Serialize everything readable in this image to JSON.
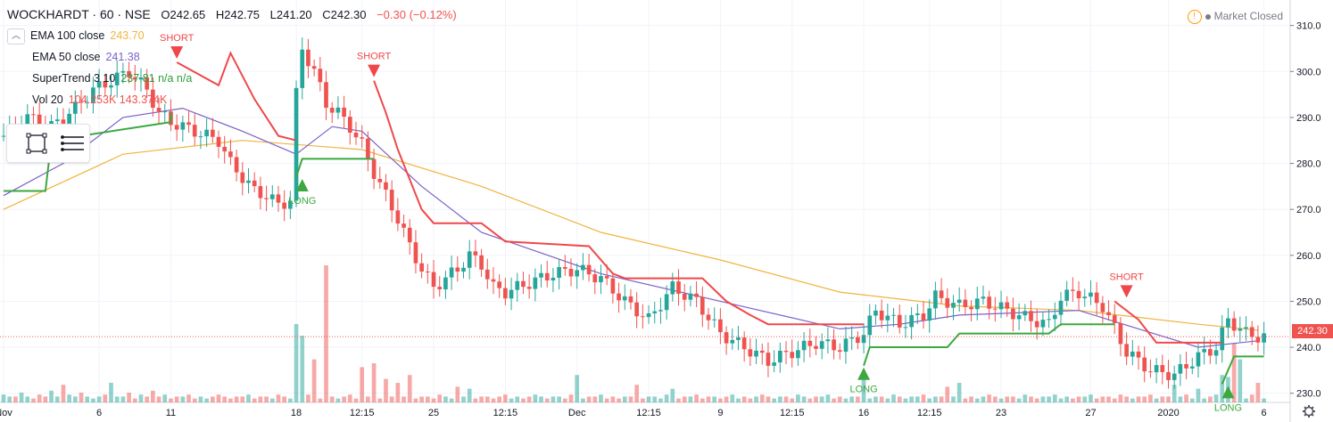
{
  "header": {
    "symbol": "WOCKHARDT · 60 · NSE",
    "open": "O242.65",
    "high": "H242.75",
    "low": "L241.20",
    "close": "C242.30",
    "change": "−0.30 (−0.12%)"
  },
  "status": {
    "market": "Market Closed",
    "warning_icon": "!"
  },
  "legend": [
    {
      "name": "EMA 100 close",
      "value": "243.70",
      "color": "#f0b43c"
    },
    {
      "name": "EMA 50 close",
      "value": "241.38",
      "color": "#7b61c9"
    },
    {
      "name": "SuperTrend 3 10",
      "value": "237.81  n/a  n/a",
      "color": "#2e9e3a"
    },
    {
      "name": "Vol 20",
      "value": "104.253K  143.374K",
      "color": "#ef5350"
    }
  ],
  "price_label": "242.30",
  "icons": {
    "collapse": "chevron-up-icon",
    "rect": "rectangle-tool-icon",
    "menu": "hamburger-menu-icon",
    "settings": "gear-icon"
  },
  "chart_data": {
    "type": "candlestick",
    "title": "WOCKHARDT · 60 · NSE",
    "y_ticks": [
      230,
      240,
      250,
      260,
      270,
      280,
      290,
      300,
      310
    ],
    "ylim": [
      228,
      314
    ],
    "x_ticks": [
      {
        "label": "Nov",
        "x": 0
      },
      {
        "label": "6",
        "x": 16
      },
      {
        "label": "11",
        "x": 28
      },
      {
        "label": "18",
        "x": 49
      },
      {
        "label": "12:15",
        "x": 60
      },
      {
        "label": "25",
        "x": 72
      },
      {
        "label": "12:15",
        "x": 84
      },
      {
        "label": "Dec",
        "x": 96
      },
      {
        "label": "12:15",
        "x": 108
      },
      {
        "label": "9",
        "x": 120
      },
      {
        "label": "12:15",
        "x": 132
      },
      {
        "label": "16",
        "x": 144
      },
      {
        "label": "12:15",
        "x": 155
      },
      {
        "label": "23",
        "x": 167
      },
      {
        "label": "27",
        "x": 182
      },
      {
        "label": "2020",
        "x": 195
      },
      {
        "label": "6",
        "x": 211
      }
    ],
    "x_range": [
      0,
      213
    ],
    "close_anchors": [
      [
        0,
        286
      ],
      [
        4,
        290
      ],
      [
        8,
        288
      ],
      [
        12,
        292
      ],
      [
        15,
        296
      ],
      [
        18,
        298
      ],
      [
        21,
        300
      ],
      [
        24,
        296
      ],
      [
        26,
        291
      ],
      [
        28,
        289
      ],
      [
        32,
        287
      ],
      [
        36,
        285
      ],
      [
        38,
        280
      ],
      [
        40,
        277
      ],
      [
        42,
        274
      ],
      [
        44,
        273
      ],
      [
        46,
        271
      ],
      [
        48,
        272
      ],
      [
        49,
        295
      ],
      [
        50,
        305
      ],
      [
        52,
        300
      ],
      [
        54,
        293
      ],
      [
        56,
        291
      ],
      [
        58,
        288
      ],
      [
        60,
        284
      ],
      [
        62,
        278
      ],
      [
        64,
        273
      ],
      [
        66,
        268
      ],
      [
        68,
        262
      ],
      [
        70,
        257
      ],
      [
        72,
        253
      ],
      [
        74,
        255
      ],
      [
        76,
        257
      ],
      [
        78,
        260
      ],
      [
        80,
        258
      ],
      [
        82,
        253
      ],
      [
        84,
        252
      ],
      [
        88,
        254
      ],
      [
        92,
        256
      ],
      [
        96,
        257
      ],
      [
        100,
        255
      ],
      [
        104,
        250
      ],
      [
        108,
        246
      ],
      [
        112,
        253
      ],
      [
        116,
        250
      ],
      [
        120,
        243
      ],
      [
        124,
        240
      ],
      [
        128,
        237
      ],
      [
        132,
        239
      ],
      [
        136,
        241
      ],
      [
        140,
        240
      ],
      [
        144,
        243
      ],
      [
        146,
        248
      ],
      [
        150,
        245
      ],
      [
        154,
        247
      ],
      [
        156,
        251
      ],
      [
        160,
        249
      ],
      [
        164,
        250
      ],
      [
        168,
        248
      ],
      [
        172,
        246
      ],
      [
        175,
        245
      ],
      [
        177,
        251
      ],
      [
        180,
        252
      ],
      [
        184,
        249
      ],
      [
        186,
        244
      ],
      [
        188,
        239
      ],
      [
        192,
        235
      ],
      [
        196,
        234
      ],
      [
        200,
        238
      ],
      [
        203,
        240
      ],
      [
        205,
        246
      ],
      [
        208,
        243
      ],
      [
        210,
        242.3
      ]
    ],
    "series": [
      {
        "name": "EMA 100 close",
        "values": [
          [
            0,
            270
          ],
          [
            20,
            282
          ],
          [
            40,
            285
          ],
          [
            60,
            283
          ],
          [
            80,
            275
          ],
          [
            100,
            265
          ],
          [
            120,
            259
          ],
          [
            140,
            252
          ],
          [
            160,
            249
          ],
          [
            180,
            248
          ],
          [
            200,
            245
          ],
          [
            210,
            243.7
          ]
        ]
      },
      {
        "name": "EMA 50 close",
        "values": [
          [
            0,
            273
          ],
          [
            10,
            280
          ],
          [
            20,
            290
          ],
          [
            30,
            292
          ],
          [
            40,
            287
          ],
          [
            49,
            282
          ],
          [
            55,
            288
          ],
          [
            60,
            287
          ],
          [
            70,
            275
          ],
          [
            80,
            265
          ],
          [
            100,
            256
          ],
          [
            120,
            250
          ],
          [
            140,
            244
          ],
          [
            150,
            245
          ],
          [
            160,
            247
          ],
          [
            180,
            248
          ],
          [
            190,
            244
          ],
          [
            200,
            240
          ],
          [
            210,
            241.4
          ]
        ]
      },
      {
        "name": "SuperTrend 3 10",
        "values": [
          {
            "dir": "up",
            "pts": [
              [
                0,
                274
              ],
              [
                7,
                274
              ],
              [
                8,
                285
              ],
              [
                28,
                289
              ],
              [
                28,
                291
              ]
            ]
          },
          {
            "dir": "down",
            "pts": [
              [
                29,
                302
              ],
              [
                36,
                297
              ],
              [
                38,
                304
              ],
              [
                42,
                294
              ],
              [
                46,
                286
              ],
              [
                49,
                285
              ]
            ]
          },
          {
            "dir": "up",
            "pts": [
              [
                49,
                277
              ],
              [
                50,
                281
              ],
              [
                62,
                281
              ]
            ]
          },
          {
            "dir": "down",
            "pts": [
              [
                62,
                298
              ],
              [
                64,
                291
              ],
              [
                66,
                283
              ],
              [
                70,
                270
              ],
              [
                72,
                267
              ],
              [
                80,
                267
              ],
              [
                84,
                263
              ],
              [
                98,
                262
              ],
              [
                102,
                256
              ],
              [
                104,
                255
              ],
              [
                117,
                255
              ],
              [
                121,
                250
              ],
              [
                125,
                247
              ],
              [
                128,
                245
              ],
              [
                144,
                245
              ]
            ]
          },
          {
            "dir": "up",
            "pts": [
              [
                144,
                236
              ],
              [
                145,
                240
              ],
              [
                158,
                240
              ],
              [
                160,
                243
              ],
              [
                175,
                243
              ],
              [
                177,
                245
              ],
              [
                186,
                245
              ]
            ]
          },
          {
            "dir": "down",
            "pts": [
              [
                186,
                250
              ],
              [
                190,
                246
              ],
              [
                193,
                241
              ],
              [
                200,
                241
              ],
              [
                204,
                241
              ]
            ]
          },
          {
            "dir": "up",
            "pts": [
              [
                204,
                232
              ],
              [
                206,
                238
              ],
              [
                211,
                238
              ]
            ]
          }
        ]
      },
      {
        "name": "Vol 20",
        "values": [
          4,
          3,
          3,
          5,
          3,
          2,
          4,
          3,
          6,
          3,
          2,
          4,
          3,
          5,
          3,
          2,
          3,
          4,
          2,
          3,
          3,
          5,
          2,
          4,
          3,
          2,
          3,
          4,
          2,
          3,
          3,
          4,
          2,
          3,
          2,
          3,
          4,
          3,
          2,
          3,
          3,
          4,
          2,
          3,
          3,
          2,
          4,
          3,
          2,
          3,
          3,
          4,
          3,
          2,
          3,
          3,
          2,
          3,
          4,
          2,
          3,
          3,
          4,
          2,
          3,
          3,
          2,
          3,
          4,
          2,
          3,
          3,
          2,
          4,
          3,
          2,
          3,
          3,
          4,
          2,
          3,
          3,
          2,
          3,
          4,
          2,
          3,
          2,
          3,
          4,
          3,
          2,
          3,
          3,
          2,
          4,
          3,
          2,
          3,
          3,
          4,
          2,
          3,
          2,
          3,
          3,
          4,
          2,
          3,
          3,
          2,
          4,
          3,
          2,
          3,
          3,
          4,
          2,
          3,
          3,
          2,
          3,
          4,
          2,
          3,
          2,
          3,
          4,
          3,
          2,
          3,
          3,
          2,
          4,
          3,
          2,
          3,
          3,
          4,
          2,
          3,
          2,
          3,
          3,
          4,
          2,
          3,
          3,
          2,
          4,
          3,
          2,
          3,
          3,
          4,
          2,
          3,
          3,
          2,
          3,
          4,
          2,
          3,
          2,
          3,
          4,
          3,
          2,
          3,
          3,
          2,
          4,
          3,
          2,
          3,
          3,
          4,
          2,
          3,
          2,
          3,
          3,
          4,
          2,
          3,
          3,
          2,
          4,
          3,
          2,
          3,
          3,
          4,
          2,
          3,
          3,
          2,
          3,
          4,
          2,
          3,
          2,
          3,
          4,
          3,
          2,
          3,
          3,
          2,
          4,
          3,
          2,
          3
        ]
      }
    ],
    "volume_spikes": [
      [
        10,
        9
      ],
      [
        18,
        10
      ],
      [
        25,
        6
      ],
      [
        49,
        40
      ],
      [
        50,
        34
      ],
      [
        52,
        22
      ],
      [
        54,
        70
      ],
      [
        60,
        18
      ],
      [
        62,
        20
      ],
      [
        64,
        12
      ],
      [
        66,
        10
      ],
      [
        68,
        14
      ],
      [
        76,
        8
      ],
      [
        78,
        7
      ],
      [
        96,
        14
      ],
      [
        106,
        9
      ],
      [
        112,
        7
      ],
      [
        144,
        12
      ],
      [
        158,
        8
      ],
      [
        160,
        10
      ],
      [
        196,
        9
      ],
      [
        200,
        7
      ],
      [
        204,
        14
      ],
      [
        205,
        13
      ],
      [
        206,
        30
      ],
      [
        207,
        22
      ],
      [
        210,
        10
      ]
    ],
    "signals": [
      {
        "type": "SHORT",
        "x": 29
      },
      {
        "type": "SHORT",
        "x": 62
      },
      {
        "type": "LONG",
        "x": 50
      },
      {
        "type": "LONG",
        "x": 144
      },
      {
        "type": "SHORT",
        "x": 188
      },
      {
        "type": "LONG",
        "x": 205
      }
    ],
    "last_price": 242.3,
    "grid": true,
    "legend_position": "top-left"
  }
}
